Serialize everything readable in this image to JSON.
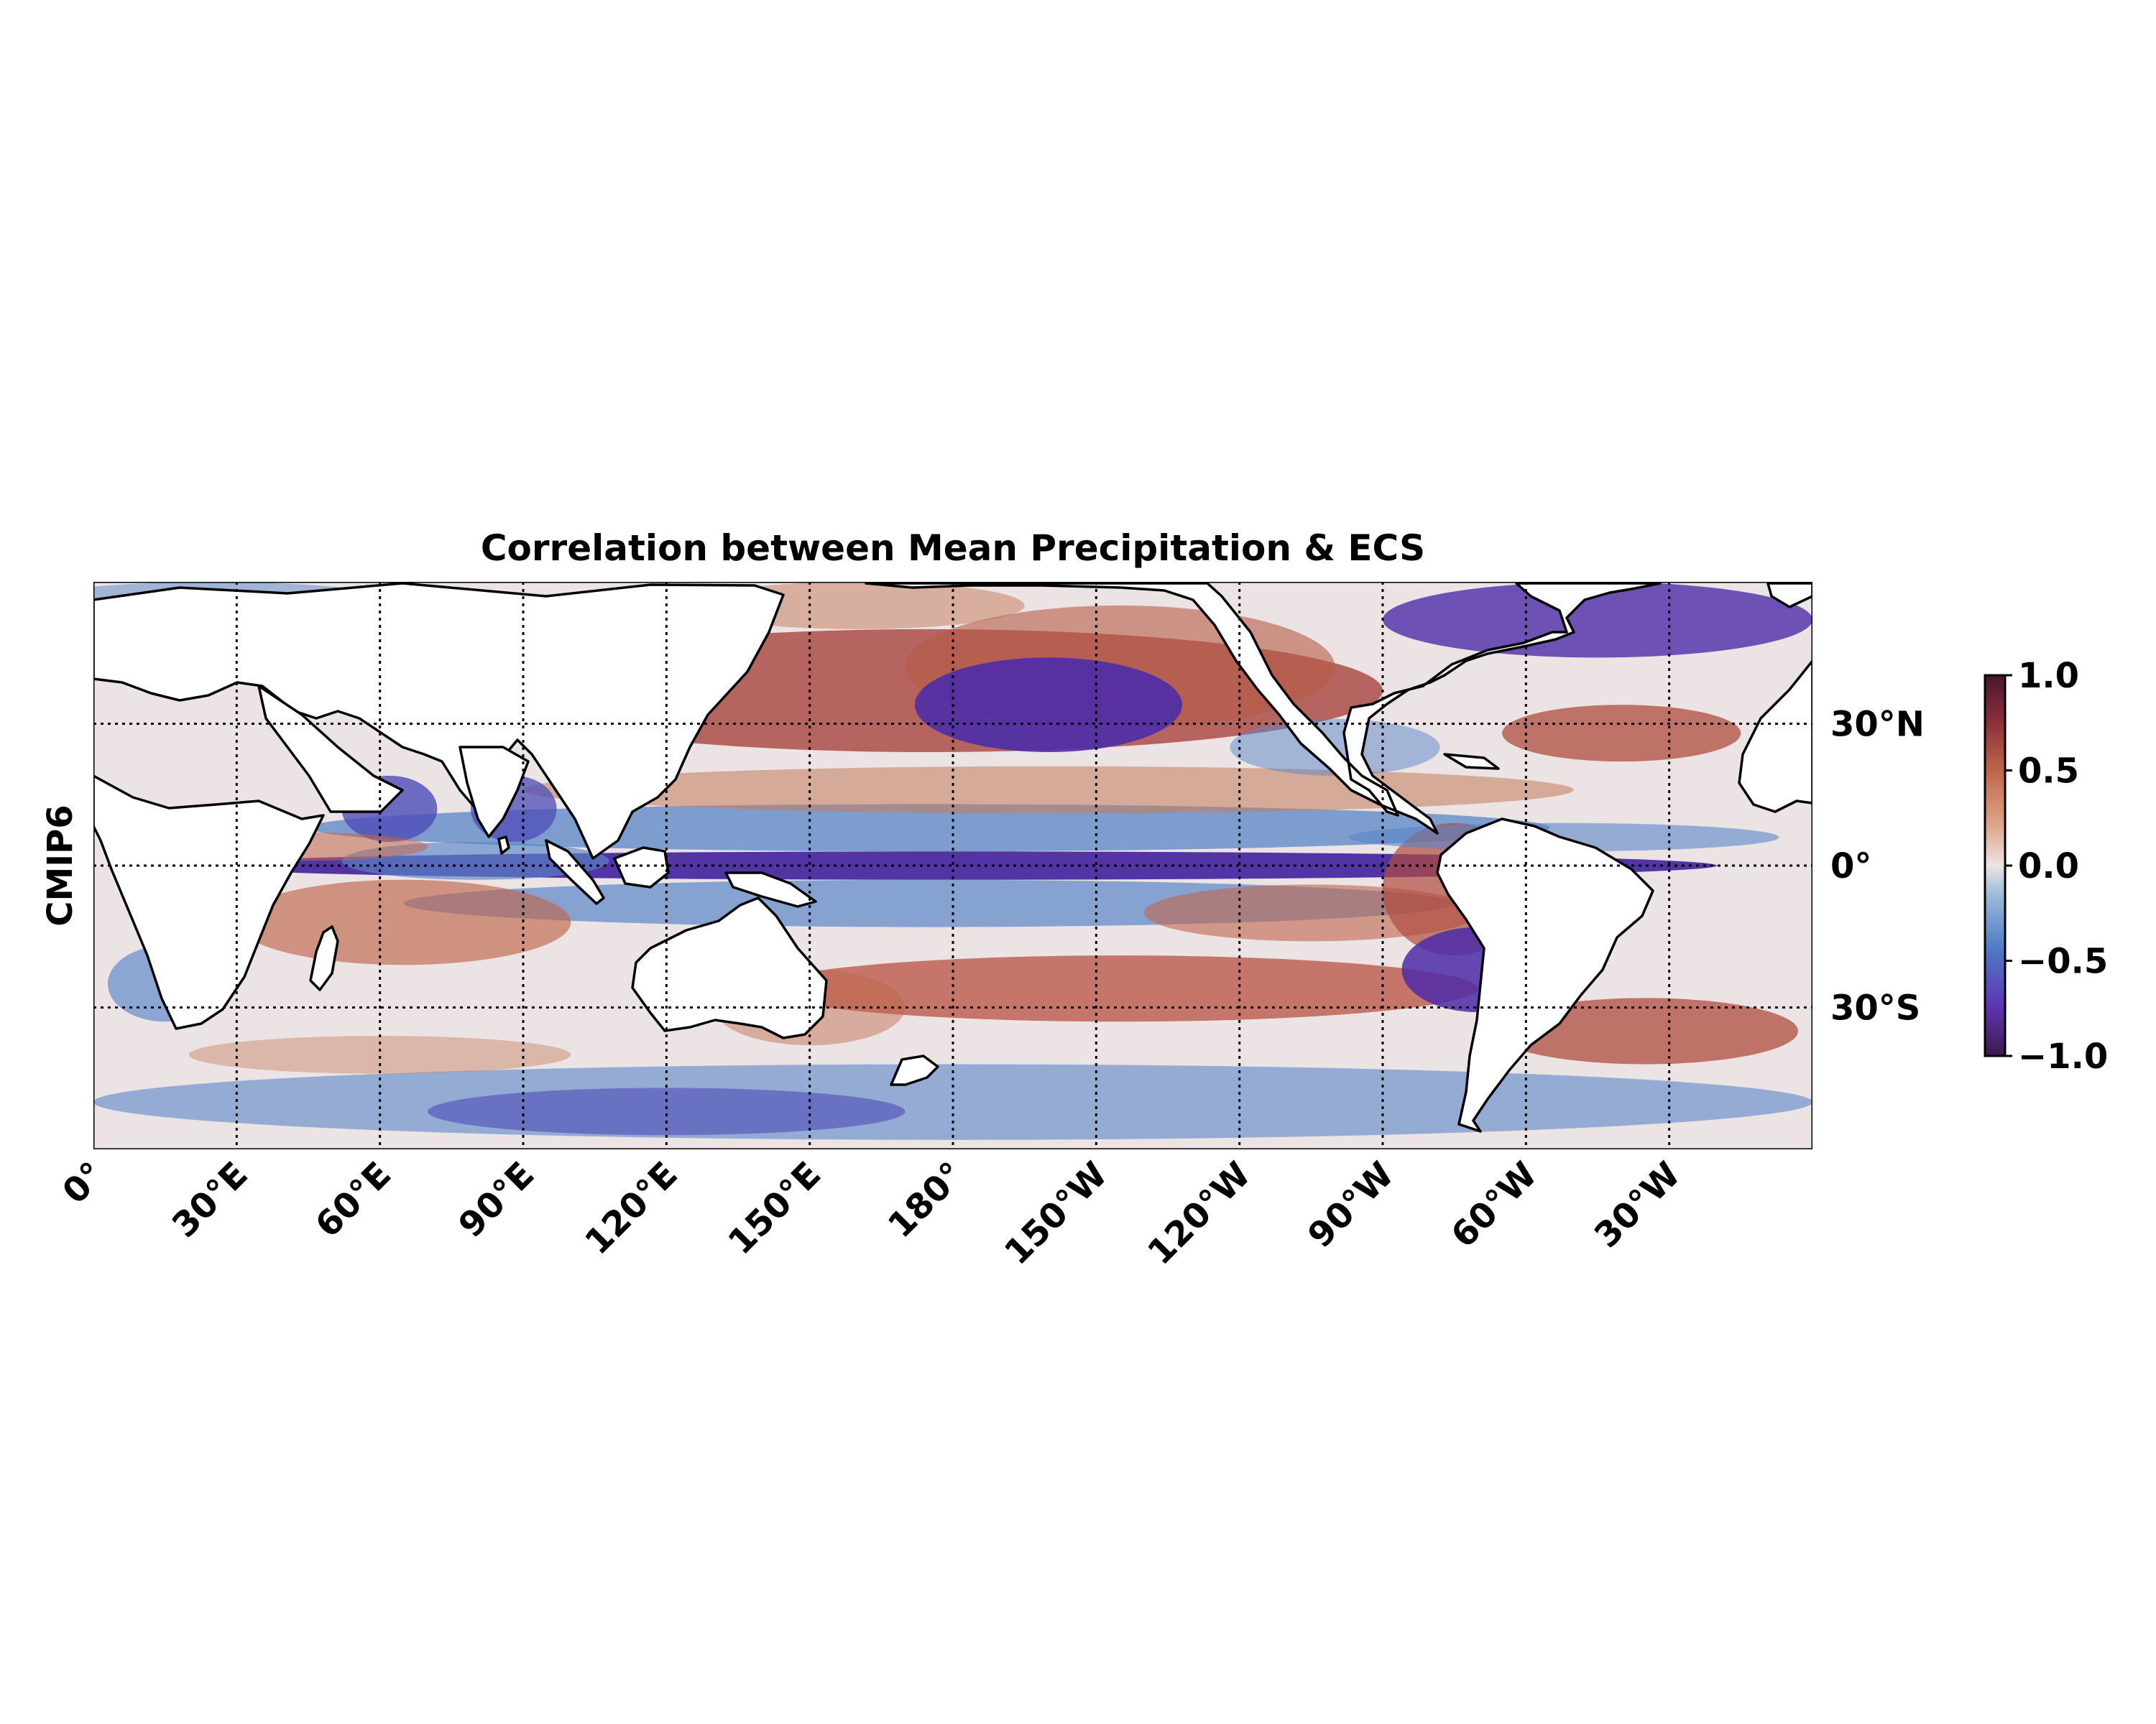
{
  "title": "Correlation between Mean Precipitation & ECS",
  "row_label": "CMIP6",
  "map": {
    "lon_range": [
      -180,
      180
    ],
    "lat_range": [
      -60,
      60
    ],
    "central_longitude": 180,
    "gridlines": true,
    "gridline_style": "dotted",
    "coastlines": true,
    "land_fill": "#ffffff"
  },
  "lon_ticks": [
    {
      "lon": 0,
      "label": "0°"
    },
    {
      "lon": 30,
      "label": "30°E"
    },
    {
      "lon": 60,
      "label": "60°E"
    },
    {
      "lon": 90,
      "label": "90°E"
    },
    {
      "lon": 120,
      "label": "120°E"
    },
    {
      "lon": 150,
      "label": "150°E"
    },
    {
      "lon": 180,
      "label": "180°"
    },
    {
      "lon": 210,
      "label": "150°W"
    },
    {
      "lon": 240,
      "label": "120°W"
    },
    {
      "lon": 270,
      "label": "90°W"
    },
    {
      "lon": 300,
      "label": "60°W"
    },
    {
      "lon": 330,
      "label": "30°W"
    }
  ],
  "lat_ticks": [
    {
      "lat": 30,
      "label": "30°N"
    },
    {
      "lat": 0,
      "label": "0°"
    },
    {
      "lat": -30,
      "label": "30°S"
    }
  ],
  "colorbar": {
    "vmin": -1.0,
    "vmax": 1.0,
    "ticks": [
      {
        "value": 1.0,
        "label": "1.0"
      },
      {
        "value": 0.5,
        "label": "0.5"
      },
      {
        "value": 0.0,
        "label": "0.0"
      },
      {
        "value": -0.5,
        "label": "−0.5"
      },
      {
        "value": -1.0,
        "label": "−1.0"
      }
    ],
    "colormap": [
      "#3b1a4e",
      "#5e35b1",
      "#4e79c4",
      "#9ab8d8",
      "#ece4e4",
      "#e0a88c",
      "#c26a4f",
      "#8a2e3a",
      "#4a1530"
    ]
  }
}
